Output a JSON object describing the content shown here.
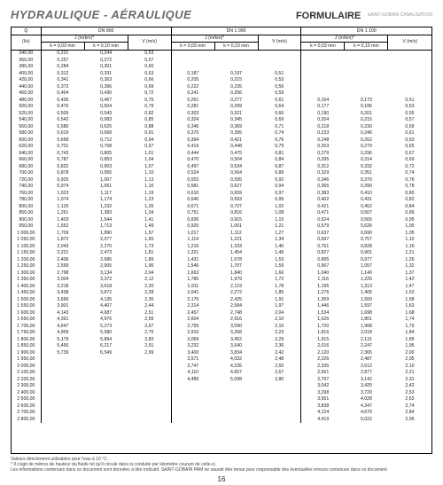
{
  "header": {
    "left": "HYDRAULIQUE - AÉRAULIQUE",
    "right": "FORMULAIRE",
    "brand": "SAINT-GOBAIN\nCANALISATION"
  },
  "table": {
    "q_label": "Q",
    "q_unit": "(l/s)",
    "dn_groups": [
      "DN 900",
      "DN 1 000",
      "DN 1 100"
    ],
    "j_label": "J (m/km)*",
    "v_label": "V (m/s)",
    "k_labels": [
      "k = 0,03 mm",
      "k = 0,10 mm"
    ],
    "rows": [
      {
        "q": "340,00",
        "dn900": [
          "0,231",
          "0,244",
          "0,53"
        ],
        "dn1000": [
          "",
          "",
          ""
        ],
        "dn1100": [
          "",
          "",
          ""
        ]
      },
      {
        "q": "360,00",
        "dn900": [
          "0,257",
          "0,272",
          "0,57"
        ],
        "dn1000": [
          "",
          "",
          ""
        ],
        "dn1100": [
          "",
          "",
          ""
        ]
      },
      {
        "q": "380,00",
        "dn900": [
          "0,284",
          "0,301",
          "0,60"
        ],
        "dn1000": [
          "",
          "",
          ""
        ],
        "dn1100": [
          "",
          "",
          ""
        ]
      },
      {
        "q": "400,00",
        "dn900": [
          "0,312",
          "0,331",
          "0,63"
        ],
        "dn1000": [
          "0,187",
          "0,197",
          "0,51"
        ],
        "dn1100": [
          "",
          "",
          ""
        ]
      },
      {
        "q": "420,00",
        "dn900": [
          "0,341",
          "0,363",
          "0,66"
        ],
        "dn1000": [
          "0,205",
          "0,215",
          "0,53"
        ],
        "dn1100": [
          "",
          "",
          ""
        ]
      },
      {
        "q": "440,00",
        "dn900": [
          "0,372",
          "0,396",
          "0,69"
        ],
        "dn1000": [
          "0,222",
          "0,235",
          "0,56"
        ],
        "dn1100": [
          "",
          "",
          ""
        ]
      },
      {
        "q": "460,00",
        "dn900": [
          "0,404",
          "0,430",
          "0,72"
        ],
        "dn1000": [
          "0,241",
          "0,256",
          "0,59"
        ],
        "dn1100": [
          "",
          "",
          ""
        ]
      },
      {
        "q": "480,00",
        "dn900": [
          "0,436",
          "0,467",
          "0,75"
        ],
        "dn1000": [
          "0,261",
          "0,277",
          "0,61"
        ],
        "dn1100": [
          "0,164",
          "0,173",
          "0,51"
        ]
      },
      {
        "q": "500,00",
        "dn900": [
          "0,470",
          "0,504",
          "0,79"
        ],
        "dn1000": [
          "0,281",
          "0,299",
          "0,64"
        ],
        "dn1100": [
          "0,177",
          "0,186",
          "0,53"
        ]
      },
      {
        "q": "520,00",
        "dn900": [
          "0,505",
          "0,543",
          "0,82"
        ],
        "dn1000": [
          "0,303",
          "0,321",
          "0,66"
        ],
        "dn1100": [
          "0,190",
          "0,201",
          "0,55"
        ]
      },
      {
        "q": "540,00",
        "dn900": [
          "0,542",
          "0,583",
          "0,85"
        ],
        "dn1000": [
          "0,324",
          "0,345",
          "0,69"
        ],
        "dn1100": [
          "0,204",
          "0,215",
          "0,57"
        ]
      },
      {
        "q": "560,00",
        "dn900": [
          "0,580",
          "0,625",
          "0,88"
        ],
        "dn1000": [
          "0,346",
          "0,369",
          "0,71"
        ],
        "dn1100": [
          "0,218",
          "0,230",
          "0,59"
        ]
      },
      {
        "q": "580,00",
        "dn900": [
          "0,619",
          "0,668",
          "0,91"
        ],
        "dn1000": [
          "0,370",
          "0,395",
          "0,74"
        ],
        "dn1100": [
          "0,233",
          "0,246",
          "0,61"
        ]
      },
      {
        "q": "600,00",
        "dn900": [
          "0,658",
          "0,712",
          "0,94"
        ],
        "dn1000": [
          "0,394",
          "0,421",
          "0,76"
        ],
        "dn1100": [
          "0,248",
          "0,262",
          "0,63"
        ]
      },
      {
        "q": "620,00",
        "dn900": [
          "0,701",
          "0,758",
          "0,97"
        ],
        "dn1000": [
          "0,419",
          "0,448",
          "0,79"
        ],
        "dn1100": [
          "0,263",
          "0,279",
          "0,65"
        ]
      },
      {
        "q": "640,00",
        "dn900": [
          "0,743",
          "0,805",
          "1,01"
        ],
        "dn1000": [
          "0,444",
          "0,475",
          "0,81"
        ],
        "dn1100": [
          "0,279",
          "0,296",
          "0,67"
        ]
      },
      {
        "q": "660,00",
        "dn900": [
          "0,787",
          "0,853",
          "1,04"
        ],
        "dn1000": [
          "0,470",
          "0,504",
          "0,84"
        ],
        "dn1100": [
          "0,295",
          "0,314",
          "0,69"
        ]
      },
      {
        "q": "680,00",
        "dn900": [
          "0,832",
          "0,903",
          "1,07"
        ],
        "dn1000": [
          "0,497",
          "0,534",
          "0,87"
        ],
        "dn1100": [
          "0,312",
          "0,332",
          "0,72"
        ]
      },
      {
        "q": "700,00",
        "dn900": [
          "0,878",
          "0,955",
          "1,10"
        ],
        "dn1000": [
          "0,524",
          "0,564",
          "0,89"
        ],
        "dn1100": [
          "0,329",
          "0,351",
          "0,74"
        ]
      },
      {
        "q": "720,00",
        "dn900": [
          "0,925",
          "1,007",
          "1,13"
        ],
        "dn1000": [
          "0,553",
          "0,595",
          "0,92"
        ],
        "dn1100": [
          "0,346",
          "0,370",
          "0,76"
        ]
      },
      {
        "q": "740,00",
        "dn900": [
          "0,974",
          "1,061",
          "1,16"
        ],
        "dn1000": [
          "0,581",
          "0,627",
          "0,94"
        ],
        "dn1100": [
          "0,365",
          "0,390",
          "0,78"
        ]
      },
      {
        "q": "760,00",
        "dn900": [
          "1,023",
          "1,117",
          "1,19"
        ],
        "dn1000": [
          "0,610",
          "0,659",
          "0,97"
        ],
        "dn1100": [
          "0,383",
          "0,410",
          "0,80"
        ]
      },
      {
        "q": "780,00",
        "dn900": [
          "1,074",
          "1,174",
          "1,23"
        ],
        "dn1000": [
          "0,640",
          "0,693",
          "0,99"
        ],
        "dn1100": [
          "0,402",
          "0,431",
          "0,82"
        ]
      },
      {
        "q": "800,00",
        "dn900": [
          "1,126",
          "1,232",
          "1,26"
        ],
        "dn1000": [
          "0,671",
          "0,727",
          "1,02"
        ],
        "dn1100": [
          "0,421",
          "0,452",
          "0,84"
        ]
      },
      {
        "q": "850,00",
        "dn900": [
          "1,261",
          "1,383",
          "1,34"
        ],
        "dn1000": [
          "0,751",
          "0,816",
          "1,08"
        ],
        "dn1100": [
          "0,471",
          "0,507",
          "0,89"
        ]
      },
      {
        "q": "900,00",
        "dn900": [
          "1,403",
          "1,544",
          "1,41"
        ],
        "dn1000": [
          "0,836",
          "0,915",
          "1,15"
        ],
        "dn1100": [
          "0,524",
          "0,565",
          "0,95"
        ]
      },
      {
        "q": "950,00",
        "dn900": [
          "1,552",
          "1,713",
          "1,49"
        ],
        "dn1000": [
          "0,925",
          "1,001",
          "1,21"
        ],
        "dn1100": [
          "0,579",
          "0,626",
          "1,00"
        ]
      },
      {
        "q": "1 000,00",
        "dn900": [
          "1,709",
          "1,890",
          "1,57"
        ],
        "dn1000": [
          "1,017",
          "1,112",
          "1,27"
        ],
        "dn1100": [
          "0,637",
          "0,690",
          "1,05"
        ]
      },
      {
        "q": "1 050,00",
        "dn900": [
          "1,872",
          "2,077",
          "1,65"
        ],
        "dn1000": [
          "1,114",
          "1,221",
          "1,34"
        ],
        "dn1100": [
          "0,697",
          "0,757",
          "1,10"
        ]
      },
      {
        "q": "1 100,00",
        "dn900": [
          "2,043",
          "2,270",
          "1,73"
        ],
        "dn1000": [
          "1,216",
          "1,333",
          "1,40"
        ],
        "dn1100": [
          "0,761",
          "0,828",
          "1,16"
        ]
      },
      {
        "q": "1 150,00",
        "dn900": [
          "2,221",
          "2,473",
          "1,81"
        ],
        "dn1000": [
          "1,321",
          "1,454",
          "1,46"
        ],
        "dn1100": [
          "0,827",
          "0,901",
          "1,21"
        ]
      },
      {
        "q": "1 200,00",
        "dn900": [
          "2,406",
          "2,685",
          "1,89"
        ],
        "dn1000": [
          "1,431",
          "1,578",
          "1,53"
        ],
        "dn1100": [
          "0,895",
          "0,977",
          "1,26"
        ]
      },
      {
        "q": "1 250,00",
        "dn900": [
          "2,599",
          "2,905",
          "1,96"
        ],
        "dn1000": [
          "1,546",
          "1,707",
          "1,59"
        ],
        "dn1100": [
          "0,967",
          "1,057",
          "1,32"
        ]
      },
      {
        "q": "1 300,00",
        "dn900": [
          "2,798",
          "3,134",
          "2,04"
        ],
        "dn1000": [
          "1,663",
          "1,840",
          "1,66"
        ],
        "dn1100": [
          "1,040",
          "1,140",
          "1,37"
        ]
      },
      {
        "q": "1 350,00",
        "dn900": [
          "3,004",
          "3,372",
          "2,12"
        ],
        "dn1000": [
          "1,785",
          "1,979",
          "1,72"
        ],
        "dn1100": [
          "1,116",
          "1,225",
          "1,42"
        ]
      },
      {
        "q": "1 400,00",
        "dn900": [
          "3,218",
          "3,618",
          "2,20"
        ],
        "dn1000": [
          "1,911",
          "2,123",
          "1,78"
        ],
        "dn1100": [
          "1,195",
          "1,313",
          "1,47"
        ]
      },
      {
        "q": "1 450,00",
        "dn900": [
          "3,438",
          "3,872",
          "2,28"
        ],
        "dn1000": [
          "2,041",
          "2,272",
          "1,85"
        ],
        "dn1100": [
          "1,276",
          "1,405",
          "1,53"
        ]
      },
      {
        "q": "1 500,00",
        "dn900": [
          "3,666",
          "4,135",
          "2,36"
        ],
        "dn1000": [
          "2,176",
          "2,425",
          "1,91"
        ],
        "dn1100": [
          "1,359",
          "1,500",
          "1,58"
        ]
      },
      {
        "q": "1 550,00",
        "dn900": [
          "3,901",
          "4,407",
          "2,44"
        ],
        "dn1000": [
          "2,314",
          "2,584",
          "1,97"
        ],
        "dn1100": [
          "1,446",
          "1,597",
          "1,63"
        ]
      },
      {
        "q": "1 600,00",
        "dn900": [
          "4,143",
          "4,687",
          "2,51"
        ],
        "dn1000": [
          "2,457",
          "2,748",
          "2,04"
        ],
        "dn1100": [
          "1,534",
          "1,698",
          "1,68"
        ]
      },
      {
        "q": "1 650,00",
        "dn900": [
          "4,391",
          "4,976",
          "2,59"
        ],
        "dn1000": [
          "2,604",
          "2,916",
          "2,10"
        ],
        "dn1100": [
          "1,626",
          "1,801",
          "1,74"
        ]
      },
      {
        "q": "1 700,00",
        "dn900": [
          "4,647",
          "5,273",
          "2,67"
        ],
        "dn1000": [
          "2,755",
          "3,090",
          "2,16"
        ],
        "dn1100": [
          "1,720",
          "1,908",
          "1,79"
        ]
      },
      {
        "q": "1 750,00",
        "dn900": [
          "4,909",
          "5,580",
          "2,75"
        ],
        "dn1000": [
          "2,910",
          "3,268",
          "2,23"
        ],
        "dn1100": [
          "1,816",
          "2,018",
          "1,84"
        ]
      },
      {
        "q": "1 800,00",
        "dn900": [
          "5,179",
          "5,894",
          "2,83"
        ],
        "dn1000": [
          "3,069",
          "3,452",
          "2,29"
        ],
        "dn1100": [
          "1,915",
          "2,131",
          "1,89"
        ]
      },
      {
        "q": "1 850,00",
        "dn900": [
          "5,456",
          "6,217",
          "2,91"
        ],
        "dn1000": [
          "3,232",
          "3,640",
          "2,36"
        ],
        "dn1100": [
          "2,016",
          "2,247",
          "1,95"
        ]
      },
      {
        "q": "1 900,00",
        "dn900": [
          "5,739",
          "6,549",
          "2,99"
        ],
        "dn1000": [
          "3,400",
          "3,834",
          "2,42"
        ],
        "dn1100": [
          "2,120",
          "2,365",
          "2,00"
        ]
      },
      {
        "q": "1 950,00",
        "dn900": [
          "",
          "",
          ""
        ],
        "dn1000": [
          "3,571",
          "4,032",
          "2,48"
        ],
        "dn1100": [
          "2,226",
          "2,487",
          "2,05"
        ]
      },
      {
        "q": "2 000,00",
        "dn900": [
          "",
          "",
          ""
        ],
        "dn1000": [
          "3,747",
          "4,235",
          "2,55"
        ],
        "dn1100": [
          "2,335",
          "2,612",
          "2,10"
        ]
      },
      {
        "q": "2 100,00",
        "dn900": [
          "",
          "",
          ""
        ],
        "dn1000": [
          "4,110",
          "4,657",
          "2,67"
        ],
        "dn1100": [
          "2,561",
          "2,877",
          "2,21"
        ]
      },
      {
        "q": "2 200,00",
        "dn900": [
          "",
          "",
          ""
        ],
        "dn1000": [
          "4,489",
          "5,098",
          "2,80"
        ],
        "dn1100": [
          "2,797",
          "3,142",
          "2,31"
        ]
      },
      {
        "q": "2 300,00",
        "dn900": [
          "",
          "",
          ""
        ],
        "dn1000": [
          "",
          "",
          ""
        ],
        "dn1100": [
          "3,042",
          "3,425",
          "2,42"
        ]
      },
      {
        "q": "2 400,00",
        "dn900": [
          "",
          "",
          ""
        ],
        "dn1000": [
          "",
          "",
          ""
        ],
        "dn1100": [
          "3,298",
          "3,720",
          "2,53"
        ]
      },
      {
        "q": "2 500,00",
        "dn900": [
          "",
          "",
          ""
        ],
        "dn1000": [
          "",
          "",
          ""
        ],
        "dn1100": [
          "3,561",
          "4,028",
          "2,63"
        ]
      },
      {
        "q": "2 600,00",
        "dn900": [
          "",
          "",
          ""
        ],
        "dn1000": [
          "",
          "",
          ""
        ],
        "dn1100": [
          "3,838",
          "4,347",
          "2,74"
        ]
      },
      {
        "q": "2 700,00",
        "dn900": [
          "",
          "",
          ""
        ],
        "dn1000": [
          "",
          "",
          ""
        ],
        "dn1100": [
          "4,124",
          "4,679",
          "2,84"
        ]
      },
      {
        "q": "2 800,00",
        "dn900": [
          "",
          "",
          ""
        ],
        "dn1000": [
          "",
          "",
          ""
        ],
        "dn1100": [
          "4,419",
          "5,022",
          "2,95"
        ]
      }
    ]
  },
  "footnotes": {
    "line1": "Valeurs directement utilisables pour l'eau à 10 °C.",
    "line2": "* Il s'agit de mètres de hauteur du fluide tel qu'il circule dans la conduite par kilomètre courant de celle-ci.",
    "line3": "Les informations contenues dans ce document sont données à titre indicatif. SAINT-GOBAIN PAM ne saurait être tenue pour responsable des éventuelles erreurs contenues dans ce document."
  },
  "page_number": "16"
}
